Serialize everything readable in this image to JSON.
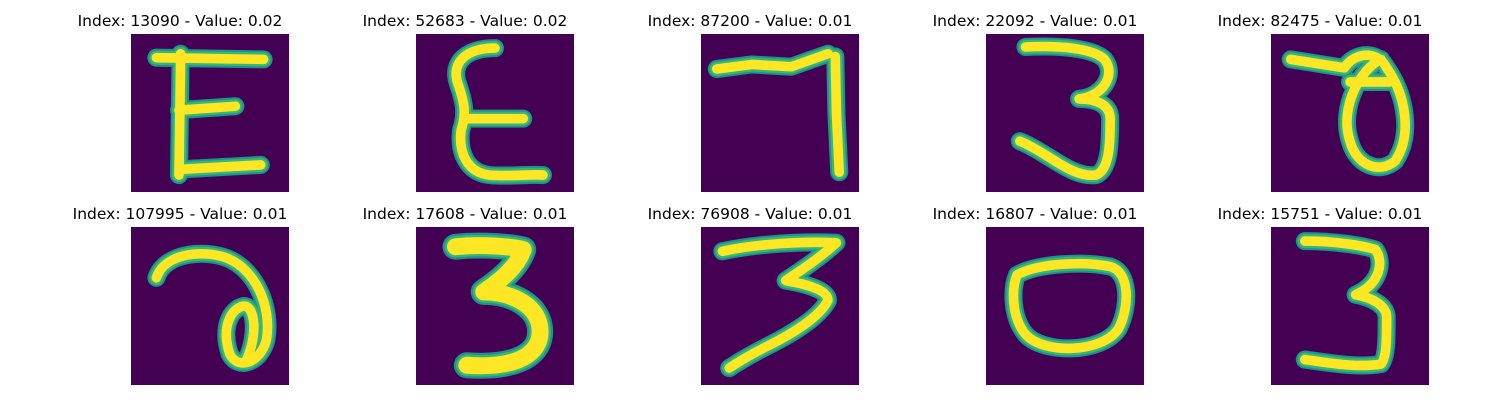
{
  "colors": {
    "background": "#440154",
    "stroke_core": "#fde725",
    "stroke_edge": "#35b779",
    "stroke_halo": "#21918c"
  },
  "panels": [
    {
      "title": "Index: 13090 - Value: 0.02",
      "glyph": "E",
      "name": "panel-13090"
    },
    {
      "title": "Index: 52683 - Value: 0.02",
      "glyph": "E-curved",
      "name": "panel-52683"
    },
    {
      "title": "Index: 87200 - Value: 0.01",
      "glyph": "7",
      "name": "panel-87200"
    },
    {
      "title": "Index: 22092 - Value: 0.01",
      "glyph": "3",
      "name": "panel-22092"
    },
    {
      "title": "Index: 82475 - Value: 0.01",
      "glyph": "theta",
      "name": "panel-82475"
    },
    {
      "title": "Index: 107995 - Value: 0.01",
      "glyph": "a-loop",
      "name": "panel-107995"
    },
    {
      "title": "Index: 17608 - Value: 0.01",
      "glyph": "3-bold",
      "name": "panel-17608"
    },
    {
      "title": "Index: 76908 - Value: 0.01",
      "glyph": "3-slanted",
      "name": "panel-76908"
    },
    {
      "title": "Index: 16807 - Value: 0.01",
      "glyph": "0",
      "name": "panel-16807"
    },
    {
      "title": "Index: 15751 - Value: 0.01",
      "glyph": "3-thin",
      "name": "panel-15751"
    }
  ]
}
